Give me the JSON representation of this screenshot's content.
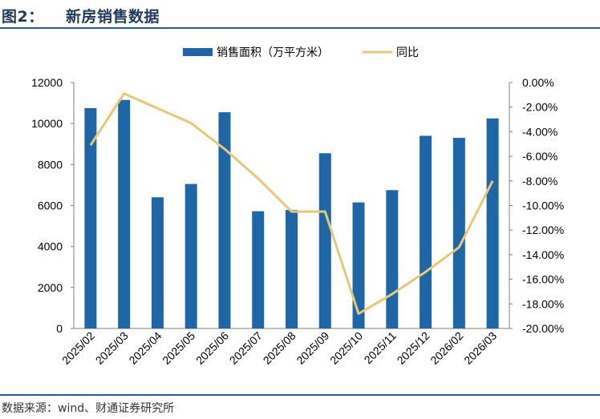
{
  "figure": {
    "label": "图2：",
    "title": "新房销售数据",
    "source": "数据来源：wind、财通证券研究所"
  },
  "chart_data": {
    "type": "bar",
    "categories": [
      "2025/02",
      "2025/03",
      "2025/04",
      "2025/05",
      "2025/06",
      "2025/07",
      "2025/08",
      "2025/09",
      "2025/10",
      "2025/11",
      "2025/12",
      "2026/02",
      "2026/03"
    ],
    "series": [
      {
        "name": "销售面积（万平方米）",
        "type": "bar",
        "axis": "left",
        "color": "#1f66a6",
        "values": [
          10750,
          11150,
          6400,
          7050,
          10550,
          5720,
          5780,
          8550,
          6150,
          6750,
          9400,
          9300,
          10250
        ]
      },
      {
        "name": "同比",
        "type": "line",
        "axis": "right",
        "color": "#e6c875",
        "values": [
          -5.1,
          -0.9,
          -2.1,
          -3.3,
          -5.4,
          -7.8,
          -10.5,
          -10.5,
          -18.8,
          -17.2,
          -15.4,
          -13.4,
          -8.0
        ]
      }
    ],
    "y_left": {
      "min": 0,
      "max": 12000,
      "ticks": [
        "0",
        "2000",
        "4000",
        "6000",
        "8000",
        "10000",
        "12000"
      ]
    },
    "y_right": {
      "min": -20,
      "max": 0,
      "ticks": [
        "-20.00%",
        "-18.00%",
        "-16.00%",
        "-14.00%",
        "-12.00%",
        "-10.00%",
        "-8.00%",
        "-6.00%",
        "-4.00%",
        "-2.00%",
        "0.00%"
      ]
    },
    "legend_position": "top-center",
    "grid": false
  }
}
